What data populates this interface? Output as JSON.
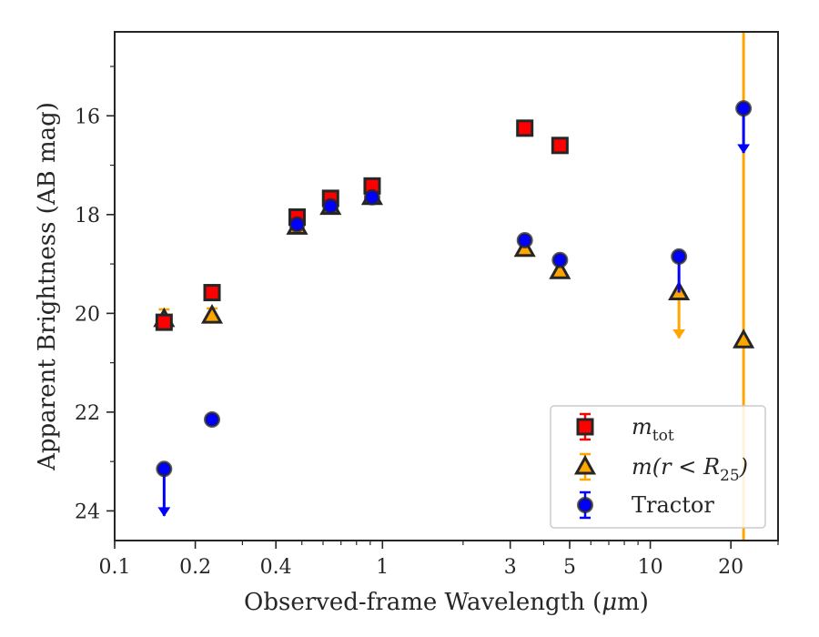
{
  "chart_data": {
    "type": "scatter",
    "xlabel_prefix": "Observed-frame Wavelength (",
    "xlabel_unit_greek": "μ",
    "xlabel_unit_rest": "m)",
    "ylabel": "Apparent Brightness (AB mag)",
    "x_scale": "log",
    "xlim": [
      0.1,
      30
    ],
    "ylim": [
      24.6,
      14.3
    ],
    "y_inverted": true,
    "x_ticks": [
      {
        "value": 0.1,
        "label": "0.1"
      },
      {
        "value": 0.2,
        "label": "0.2"
      },
      {
        "value": 0.4,
        "label": "0.4"
      },
      {
        "value": 1,
        "label": "1"
      },
      {
        "value": 3,
        "label": "3"
      },
      {
        "value": 5,
        "label": "5"
      },
      {
        "value": 10,
        "label": "10"
      },
      {
        "value": 20,
        "label": "20"
      }
    ],
    "y_ticks": [
      {
        "value": 16,
        "label": "16"
      },
      {
        "value": 18,
        "label": "18"
      },
      {
        "value": 20,
        "label": "20"
      },
      {
        "value": 22,
        "label": "22"
      },
      {
        "value": 24,
        "label": "24"
      }
    ],
    "grid": false,
    "legend_position": "lower-right",
    "series": [
      {
        "name": "m_tot",
        "legend_main": "m",
        "legend_sub": "tot",
        "marker": "square",
        "color": "#ff0000",
        "edge_color": "#262626",
        "error_color": "#ff0000",
        "points": [
          {
            "x": 0.153,
            "y": 20.18
          },
          {
            "x": 0.231,
            "y": 19.58
          },
          {
            "x": 0.48,
            "y": 18.05
          },
          {
            "x": 0.64,
            "y": 17.67
          },
          {
            "x": 0.915,
            "y": 17.42
          },
          {
            "x": 3.4,
            "y": 16.25
          },
          {
            "x": 4.6,
            "y": 16.6
          }
        ]
      },
      {
        "name": "m(r < R_25)",
        "legend_main": "m(r < R",
        "legend_sub": "25",
        "legend_close": ")",
        "marker": "triangle",
        "color": "#ffa500",
        "edge_color": "#262626",
        "error_color": "#ffa500",
        "points": [
          {
            "x": 0.153,
            "y": 20.12,
            "err": 0.2
          },
          {
            "x": 0.231,
            "y": 20.05,
            "err": 0.15
          },
          {
            "x": 0.48,
            "y": 18.25
          },
          {
            "x": 0.64,
            "y": 17.85
          },
          {
            "x": 0.915,
            "y": 17.65
          },
          {
            "x": 3.4,
            "y": 18.7
          },
          {
            "x": 4.6,
            "y": 19.15
          },
          {
            "x": 12.8,
            "y": 19.58,
            "upper_limit_to": 20.5
          },
          {
            "x": 22.3,
            "y": 20.55,
            "error_span_full": true
          }
        ]
      },
      {
        "name": "Tractor",
        "legend_main": "Tractor",
        "marker": "circle",
        "color": "#0000ff",
        "edge_color": "#262626",
        "error_color": "#0000ff",
        "points": [
          {
            "x": 0.153,
            "y": 23.15,
            "upper_limit_to": 24.1
          },
          {
            "x": 0.231,
            "y": 22.15
          },
          {
            "x": 0.48,
            "y": 18.2
          },
          {
            "x": 0.64,
            "y": 17.83
          },
          {
            "x": 0.915,
            "y": 17.65
          },
          {
            "x": 3.4,
            "y": 18.52
          },
          {
            "x": 4.6,
            "y": 18.92
          },
          {
            "x": 12.8,
            "y": 18.85,
            "limit_bar_to": 19.58
          },
          {
            "x": 22.3,
            "y": 15.85,
            "upper_limit_to": 16.75
          }
        ]
      }
    ]
  }
}
